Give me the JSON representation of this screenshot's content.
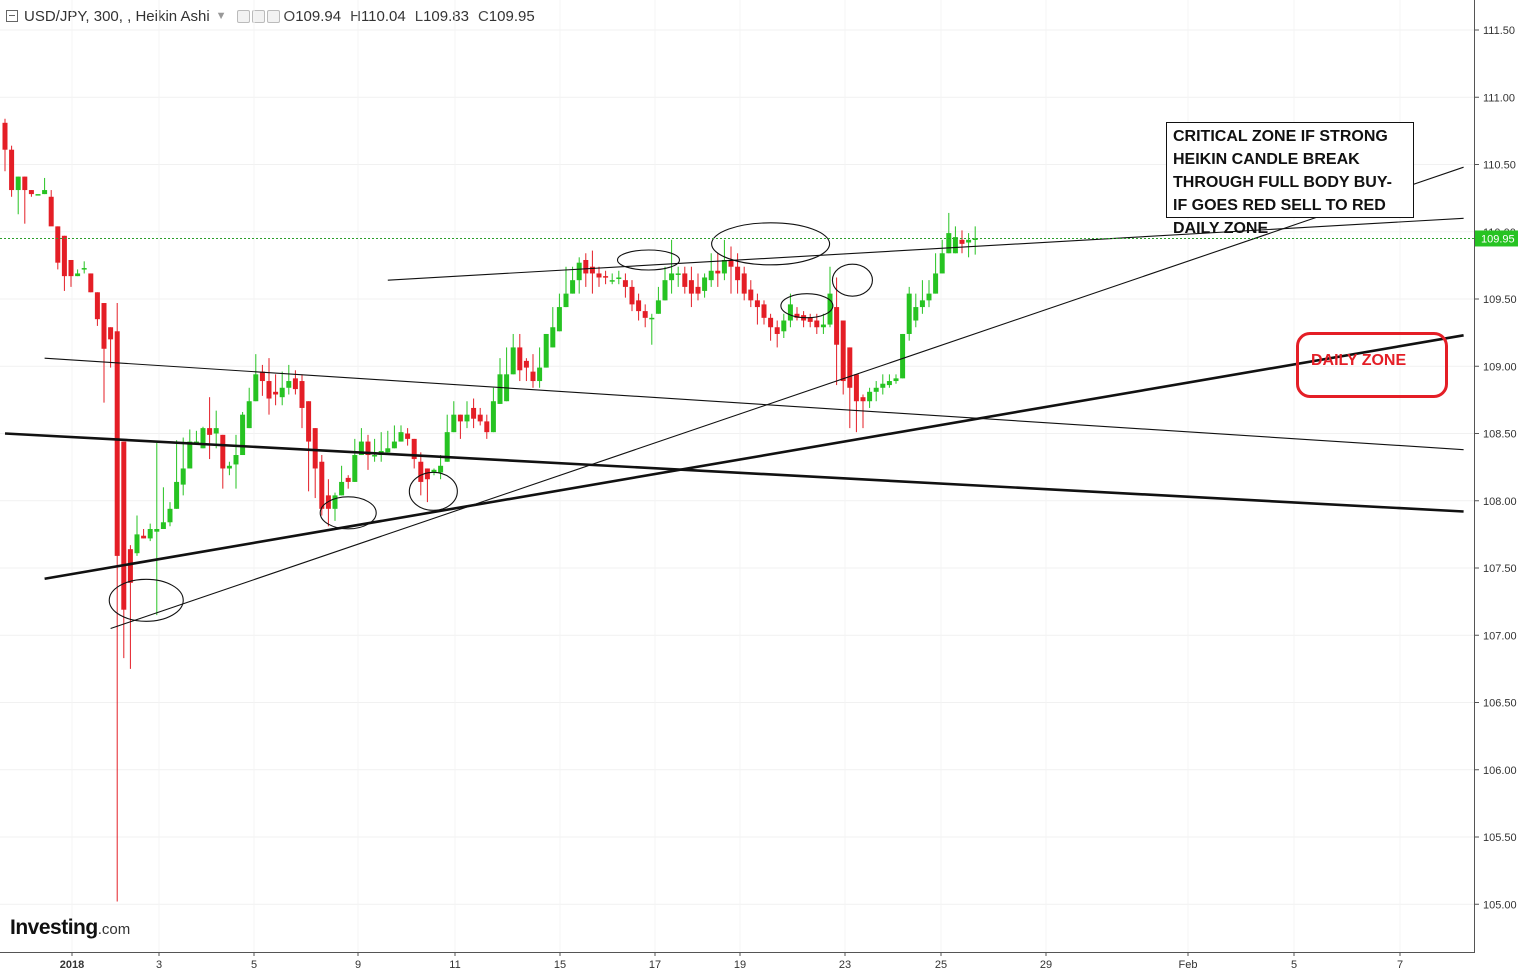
{
  "header": {
    "symbol": "USD/JPY, 300, , Heikin Ashi",
    "open_label": "O",
    "open": "109.94",
    "high_label": "H",
    "high": "110.04",
    "low_label": "L",
    "low": "109.83",
    "close_label": "C",
    "close": "109.95"
  },
  "logo": {
    "brand": "Investing",
    "domain": ".com"
  },
  "annotations": {
    "critical_note": "CRITICAL ZONE IF STRONG HEIKIN CANDLE BREAK THROUGH FULL BODY BUY- IF GOES RED SELL TO RED DAILY ZONE",
    "daily_zone": "DAILY ZONE"
  },
  "colors": {
    "up": "#26c322",
    "down": "#e41e26",
    "price_line": "#2ca02c",
    "zone": "#e41e26"
  },
  "chart_data": {
    "type": "candlestick",
    "subtype": "Heikin Ashi",
    "ylim": [
      104.7,
      111.7
    ],
    "y_ticks": [
      "111.50",
      "111.00",
      "110.50",
      "110.00",
      "109.50",
      "109.00",
      "108.50",
      "108.00",
      "107.50",
      "107.00",
      "106.50",
      "106.00",
      "105.50",
      "105.00"
    ],
    "x_tick_labels": [
      "2018",
      "3",
      "5",
      "9",
      "11",
      "15",
      "17",
      "19",
      "23",
      "25",
      "29",
      "Feb",
      "5",
      "7"
    ],
    "current_price": "109.95",
    "candles": [
      {
        "o": 110.81,
        "h": 110.84,
        "c": 110.61,
        "l": 110.45
      },
      {
        "o": 110.61,
        "h": 110.64,
        "c": 110.31,
        "l": 110.26
      },
      {
        "o": 110.31,
        "h": 110.41,
        "c": 110.41,
        "l": 110.13
      },
      {
        "o": 110.41,
        "h": 110.41,
        "c": 110.31,
        "l": 110.06
      },
      {
        "o": 110.31,
        "h": 110.31,
        "c": 110.28,
        "l": 110.26
      },
      {
        "o": 110.28,
        "h": 110.28,
        "c": 110.28,
        "l": 110.28
      },
      {
        "o": 110.28,
        "h": 110.4,
        "c": 110.31,
        "l": 110.28
      },
      {
        "o": 110.26,
        "h": 110.31,
        "c": 110.04,
        "l": 110.11
      },
      {
        "o": 110.04,
        "h": 110.04,
        "c": 109.77,
        "l": 109.72
      },
      {
        "o": 109.97,
        "h": 109.97,
        "c": 109.67,
        "l": 109.56
      },
      {
        "o": 109.79,
        "h": 109.79,
        "c": 109.67,
        "l": 109.59
      },
      {
        "o": 109.67,
        "h": 109.72,
        "c": 109.69,
        "l": 109.67
      },
      {
        "o": 109.73,
        "h": 109.78,
        "c": 109.73,
        "l": 109.69
      },
      {
        "o": 109.69,
        "h": 109.69,
        "c": 109.55,
        "l": 109.55
      },
      {
        "o": 109.55,
        "h": 109.55,
        "c": 109.35,
        "l": 109.3
      },
      {
        "o": 109.47,
        "h": 109.47,
        "c": 109.13,
        "l": 108.73
      },
      {
        "o": 109.29,
        "h": 109.29,
        "c": 109.2,
        "l": 108.99
      },
      {
        "o": 109.26,
        "h": 109.47,
        "c": 107.59,
        "l": 105.02
      },
      {
        "o": 108.44,
        "h": 108.44,
        "c": 107.19,
        "l": 106.83
      },
      {
        "o": 107.64,
        "h": 107.67,
        "c": 107.39,
        "l": 106.75
      },
      {
        "o": 107.61,
        "h": 107.89,
        "c": 107.75,
        "l": 107.59
      },
      {
        "o": 107.74,
        "h": 107.79,
        "c": 107.72,
        "l": 107.72
      },
      {
        "o": 107.72,
        "h": 107.83,
        "c": 107.79,
        "l": 107.7
      },
      {
        "o": 107.77,
        "h": 108.43,
        "c": 107.79,
        "l": 107.15
      },
      {
        "o": 107.79,
        "h": 108.1,
        "c": 107.84,
        "l": 107.79
      },
      {
        "o": 107.84,
        "h": 107.99,
        "c": 107.94,
        "l": 107.81
      },
      {
        "o": 107.94,
        "h": 108.45,
        "c": 108.14,
        "l": 107.94
      },
      {
        "o": 108.12,
        "h": 108.47,
        "c": 108.24,
        "l": 108.04
      },
      {
        "o": 108.24,
        "h": 108.53,
        "c": 108.44,
        "l": 108.24
      },
      {
        "o": 108.42,
        "h": 108.52,
        "c": 108.44,
        "l": 108.42
      },
      {
        "o": 108.39,
        "h": 108.55,
        "c": 108.54,
        "l": 108.39
      },
      {
        "o": 108.54,
        "h": 108.77,
        "c": 108.49,
        "l": 108.31
      },
      {
        "o": 108.5,
        "h": 108.67,
        "c": 108.54,
        "l": 108.39
      },
      {
        "o": 108.49,
        "h": 108.49,
        "c": 108.24,
        "l": 108.09
      },
      {
        "o": 108.24,
        "h": 108.29,
        "c": 108.26,
        "l": 108.19
      },
      {
        "o": 108.27,
        "h": 108.49,
        "c": 108.34,
        "l": 108.09
      },
      {
        "o": 108.34,
        "h": 108.66,
        "c": 108.64,
        "l": 108.34
      },
      {
        "o": 108.54,
        "h": 108.84,
        "c": 108.74,
        "l": 108.54
      },
      {
        "o": 108.74,
        "h": 109.09,
        "c": 108.94,
        "l": 108.74
      },
      {
        "o": 108.96,
        "h": 109.01,
        "c": 108.89,
        "l": 108.78
      },
      {
        "o": 108.89,
        "h": 109.06,
        "c": 108.76,
        "l": 108.64
      },
      {
        "o": 108.81,
        "h": 108.94,
        "c": 108.79,
        "l": 108.71
      },
      {
        "o": 108.77,
        "h": 108.96,
        "c": 108.84,
        "l": 108.71
      },
      {
        "o": 108.84,
        "h": 109.01,
        "c": 108.89,
        "l": 108.79
      },
      {
        "o": 108.91,
        "h": 108.97,
        "c": 108.83,
        "l": 108.79
      },
      {
        "o": 108.89,
        "h": 108.94,
        "c": 108.69,
        "l": 108.54
      },
      {
        "o": 108.74,
        "h": 108.74,
        "c": 108.44,
        "l": 108.07
      },
      {
        "o": 108.54,
        "h": 108.54,
        "c": 108.24,
        "l": 108.02
      },
      {
        "o": 108.29,
        "h": 108.34,
        "c": 107.94,
        "l": 107.89
      },
      {
        "o": 108.04,
        "h": 108.16,
        "c": 107.94,
        "l": 107.81
      },
      {
        "o": 107.94,
        "h": 108.06,
        "c": 108.04,
        "l": 107.85
      },
      {
        "o": 108.04,
        "h": 108.26,
        "c": 108.14,
        "l": 108.04
      },
      {
        "o": 108.17,
        "h": 108.19,
        "c": 108.14,
        "l": 108.09
      },
      {
        "o": 108.14,
        "h": 108.46,
        "c": 108.34,
        "l": 108.14
      },
      {
        "o": 108.34,
        "h": 108.54,
        "c": 108.44,
        "l": 108.34
      },
      {
        "o": 108.44,
        "h": 108.49,
        "c": 108.34,
        "l": 108.23
      },
      {
        "o": 108.34,
        "h": 108.46,
        "c": 108.34,
        "l": 108.29
      },
      {
        "o": 108.34,
        "h": 108.51,
        "c": 108.37,
        "l": 108.29
      },
      {
        "o": 108.36,
        "h": 108.52,
        "c": 108.39,
        "l": 108.36
      },
      {
        "o": 108.39,
        "h": 108.56,
        "c": 108.44,
        "l": 108.39
      },
      {
        "o": 108.44,
        "h": 108.56,
        "c": 108.51,
        "l": 108.44
      },
      {
        "o": 108.5,
        "h": 108.54,
        "c": 108.46,
        "l": 108.41
      },
      {
        "o": 108.46,
        "h": 108.46,
        "c": 108.31,
        "l": 108.24
      },
      {
        "o": 108.29,
        "h": 108.36,
        "c": 108.14,
        "l": 108.04
      },
      {
        "o": 108.24,
        "h": 108.24,
        "c": 108.16,
        "l": 107.99
      },
      {
        "o": 108.21,
        "h": 108.24,
        "c": 108.23,
        "l": 108.19
      },
      {
        "o": 108.21,
        "h": 108.34,
        "c": 108.26,
        "l": 108.16
      },
      {
        "o": 108.29,
        "h": 108.64,
        "c": 108.51,
        "l": 108.29
      },
      {
        "o": 108.51,
        "h": 108.74,
        "c": 108.64,
        "l": 108.51
      },
      {
        "o": 108.64,
        "h": 108.64,
        "c": 108.59,
        "l": 108.46
      },
      {
        "o": 108.59,
        "h": 108.74,
        "c": 108.64,
        "l": 108.54
      },
      {
        "o": 108.69,
        "h": 108.76,
        "c": 108.61,
        "l": 108.54
      },
      {
        "o": 108.64,
        "h": 108.69,
        "c": 108.59,
        "l": 108.56
      },
      {
        "o": 108.59,
        "h": 108.64,
        "c": 108.51,
        "l": 108.46
      },
      {
        "o": 108.51,
        "h": 108.84,
        "c": 108.74,
        "l": 108.51
      },
      {
        "o": 108.72,
        "h": 109.06,
        "c": 108.94,
        "l": 108.72
      },
      {
        "o": 108.74,
        "h": 109.14,
        "c": 108.94,
        "l": 108.74
      },
      {
        "o": 108.94,
        "h": 109.24,
        "c": 109.14,
        "l": 108.94
      },
      {
        "o": 109.14,
        "h": 109.24,
        "c": 108.97,
        "l": 108.89
      },
      {
        "o": 109.04,
        "h": 109.06,
        "c": 108.99,
        "l": 108.89
      },
      {
        "o": 108.96,
        "h": 109.09,
        "c": 108.89,
        "l": 108.84
      },
      {
        "o": 108.89,
        "h": 109.14,
        "c": 108.99,
        "l": 108.84
      },
      {
        "o": 108.99,
        "h": 109.24,
        "c": 109.24,
        "l": 108.99
      },
      {
        "o": 109.14,
        "h": 109.44,
        "c": 109.29,
        "l": 109.14
      },
      {
        "o": 109.26,
        "h": 109.54,
        "c": 109.44,
        "l": 109.26
      },
      {
        "o": 109.44,
        "h": 109.74,
        "c": 109.54,
        "l": 109.44
      },
      {
        "o": 109.54,
        "h": 109.74,
        "c": 109.64,
        "l": 109.54
      },
      {
        "o": 109.64,
        "h": 109.81,
        "c": 109.77,
        "l": 109.54
      },
      {
        "o": 109.79,
        "h": 109.84,
        "c": 109.69,
        "l": 109.59
      },
      {
        "o": 109.74,
        "h": 109.86,
        "c": 109.69,
        "l": 109.54
      },
      {
        "o": 109.69,
        "h": 109.74,
        "c": 109.66,
        "l": 109.59
      },
      {
        "o": 109.67,
        "h": 109.71,
        "c": 109.66,
        "l": 109.61
      },
      {
        "o": 109.64,
        "h": 109.69,
        "c": 109.64,
        "l": 109.61
      },
      {
        "o": 109.66,
        "h": 109.71,
        "c": 109.66,
        "l": 109.61
      },
      {
        "o": 109.64,
        "h": 109.69,
        "c": 109.59,
        "l": 109.51
      },
      {
        "o": 109.59,
        "h": 109.64,
        "c": 109.46,
        "l": 109.41
      },
      {
        "o": 109.49,
        "h": 109.54,
        "c": 109.41,
        "l": 109.34
      },
      {
        "o": 109.41,
        "h": 109.46,
        "c": 109.36,
        "l": 109.29
      },
      {
        "o": 109.36,
        "h": 109.39,
        "c": 109.36,
        "l": 109.16
      },
      {
        "o": 109.39,
        "h": 109.59,
        "c": 109.49,
        "l": 109.39
      },
      {
        "o": 109.49,
        "h": 109.74,
        "c": 109.64,
        "l": 109.49
      },
      {
        "o": 109.64,
        "h": 109.94,
        "c": 109.69,
        "l": 109.54
      },
      {
        "o": 109.69,
        "h": 109.74,
        "c": 109.69,
        "l": 109.59
      },
      {
        "o": 109.69,
        "h": 109.74,
        "c": 109.59,
        "l": 109.54
      },
      {
        "o": 109.64,
        "h": 109.74,
        "c": 109.54,
        "l": 109.44
      },
      {
        "o": 109.59,
        "h": 109.69,
        "c": 109.54,
        "l": 109.49
      },
      {
        "o": 109.56,
        "h": 109.69,
        "c": 109.66,
        "l": 109.51
      },
      {
        "o": 109.64,
        "h": 109.84,
        "c": 109.71,
        "l": 109.59
      },
      {
        "o": 109.71,
        "h": 109.84,
        "c": 109.69,
        "l": 109.59
      },
      {
        "o": 109.69,
        "h": 109.94,
        "c": 109.79,
        "l": 109.64
      },
      {
        "o": 109.79,
        "h": 109.89,
        "c": 109.74,
        "l": 109.54
      },
      {
        "o": 109.74,
        "h": 109.84,
        "c": 109.64,
        "l": 109.54
      },
      {
        "o": 109.69,
        "h": 109.74,
        "c": 109.54,
        "l": 109.49
      },
      {
        "o": 109.57,
        "h": 109.64,
        "c": 109.49,
        "l": 109.44
      },
      {
        "o": 109.49,
        "h": 109.54,
        "c": 109.44,
        "l": 109.31
      },
      {
        "o": 109.46,
        "h": 109.49,
        "c": 109.36,
        "l": 109.31
      },
      {
        "o": 109.36,
        "h": 109.39,
        "c": 109.29,
        "l": 109.19
      },
      {
        "o": 109.29,
        "h": 109.34,
        "c": 109.24,
        "l": 109.14
      },
      {
        "o": 109.26,
        "h": 109.39,
        "c": 109.34,
        "l": 109.21
      },
      {
        "o": 109.34,
        "h": 109.54,
        "c": 109.46,
        "l": 109.29
      },
      {
        "o": 109.39,
        "h": 109.44,
        "c": 109.36,
        "l": 109.34
      },
      {
        "o": 109.38,
        "h": 109.41,
        "c": 109.34,
        "l": 109.29
      },
      {
        "o": 109.36,
        "h": 109.39,
        "c": 109.33,
        "l": 109.29
      },
      {
        "o": 109.34,
        "h": 109.39,
        "c": 109.29,
        "l": 109.24
      },
      {
        "o": 109.29,
        "h": 109.39,
        "c": 109.31,
        "l": 109.24
      },
      {
        "o": 109.31,
        "h": 109.74,
        "c": 109.54,
        "l": 109.29
      },
      {
        "o": 109.44,
        "h": 109.66,
        "c": 109.16,
        "l": 108.86
      },
      {
        "o": 109.34,
        "h": 109.34,
        "c": 108.89,
        "l": 108.79
      },
      {
        "o": 109.14,
        "h": 109.14,
        "c": 108.84,
        "l": 108.54
      },
      {
        "o": 108.94,
        "h": 108.94,
        "c": 108.74,
        "l": 108.51
      },
      {
        "o": 108.77,
        "h": 108.79,
        "c": 108.74,
        "l": 108.54
      },
      {
        "o": 108.74,
        "h": 108.84,
        "c": 108.81,
        "l": 108.69
      },
      {
        "o": 108.81,
        "h": 108.89,
        "c": 108.84,
        "l": 108.74
      },
      {
        "o": 108.84,
        "h": 108.94,
        "c": 108.87,
        "l": 108.79
      },
      {
        "o": 108.86,
        "h": 108.94,
        "c": 108.89,
        "l": 108.84
      },
      {
        "o": 108.89,
        "h": 108.94,
        "c": 108.91,
        "l": 108.87
      },
      {
        "o": 108.91,
        "h": 109.24,
        "c": 109.24,
        "l": 108.91
      },
      {
        "o": 109.24,
        "h": 109.59,
        "c": 109.54,
        "l": 109.19
      },
      {
        "o": 109.34,
        "h": 109.54,
        "c": 109.44,
        "l": 109.29
      },
      {
        "o": 109.44,
        "h": 109.64,
        "c": 109.49,
        "l": 109.39
      },
      {
        "o": 109.49,
        "h": 109.64,
        "c": 109.54,
        "l": 109.44
      },
      {
        "o": 109.54,
        "h": 109.84,
        "c": 109.69,
        "l": 109.54
      },
      {
        "o": 109.69,
        "h": 109.94,
        "c": 109.84,
        "l": 109.69
      },
      {
        "o": 109.84,
        "h": 110.14,
        "c": 109.99,
        "l": 109.84
      },
      {
        "o": 109.84,
        "h": 110.04,
        "c": 109.96,
        "l": 109.84
      },
      {
        "o": 109.94,
        "h": 110.01,
        "c": 109.91,
        "l": 109.84
      },
      {
        "o": 109.92,
        "h": 109.99,
        "c": 109.94,
        "l": 109.81
      },
      {
        "o": 109.94,
        "h": 110.04,
        "c": 109.95,
        "l": 109.83
      }
    ],
    "trendlines": [
      {
        "from": [
          0,
          108.5
        ],
        "to": [
          221,
          107.92
        ],
        "style": "bold"
      },
      {
        "from": [
          6,
          107.42
        ],
        "to": [
          221,
          109.23
        ],
        "style": "bold"
      },
      {
        "from": [
          6,
          109.06
        ],
        "to": [
          221,
          108.38
        ],
        "style": "thin"
      },
      {
        "from": [
          16,
          107.05
        ],
        "to": [
          221,
          110.48
        ],
        "style": "thin"
      },
      {
        "from": [
          58,
          109.64
        ],
        "to": [
          221,
          110.1
        ],
        "style": "thin"
      }
    ],
    "ellipses": [
      {
        "at": [
          21.4,
          107.26
        ]
      },
      {
        "at": [
          52,
          107.91
        ]
      },
      {
        "at": [
          64.9,
          108.07
        ]
      },
      {
        "at": [
          97.5,
          109.79
        ]
      },
      {
        "at": [
          116,
          109.91
        ]
      },
      {
        "at": [
          121.5,
          109.45
        ]
      },
      {
        "at": [
          128.4,
          109.64
        ]
      }
    ]
  }
}
